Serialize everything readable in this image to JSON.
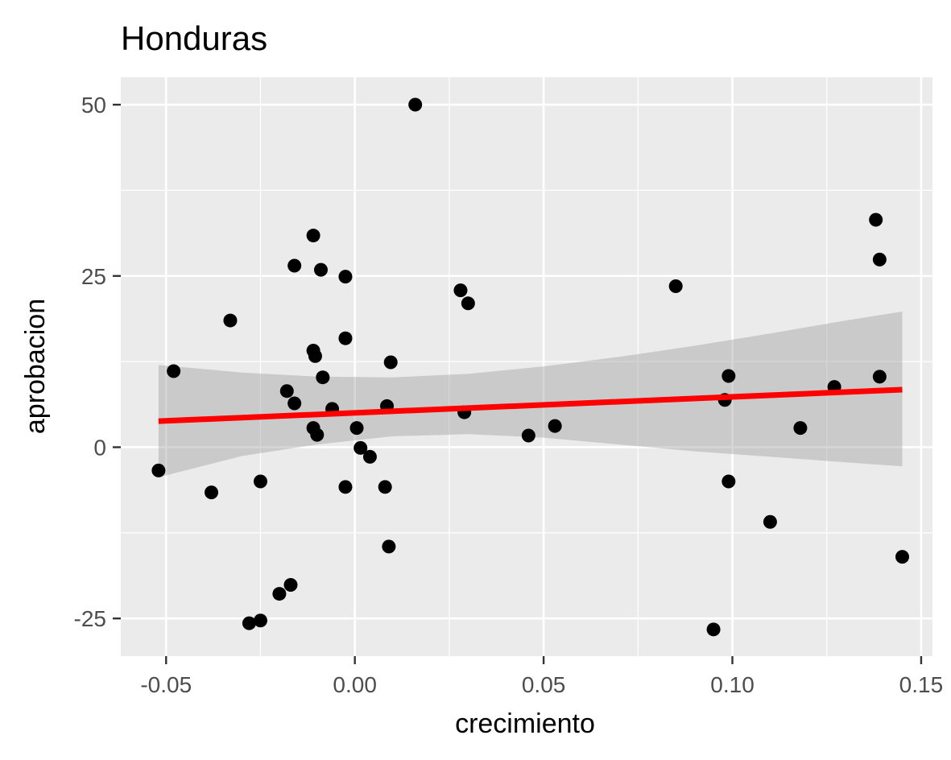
{
  "chart_data": {
    "type": "scatter",
    "title": "Honduras",
    "xlabel": "crecimiento",
    "ylabel": "aprobacion",
    "xlim": [
      -0.062,
      0.153
    ],
    "ylim": [
      -30.5,
      54.0
    ],
    "x_ticks": [
      -0.05,
      0.0,
      0.05,
      0.1,
      0.15
    ],
    "x_tick_labels": [
      "-0.05",
      "0.00",
      "0.05",
      "0.10",
      "0.15"
    ],
    "y_ticks": [
      -25,
      0,
      25,
      50
    ],
    "y_tick_labels": [
      "-25",
      "0",
      "25",
      "50"
    ],
    "grid": true,
    "legend": "none",
    "points": [
      {
        "x": -0.052,
        "y": -3.4
      },
      {
        "x": -0.048,
        "y": 11.1
      },
      {
        "x": -0.038,
        "y": -6.6
      },
      {
        "x": -0.033,
        "y": 18.5
      },
      {
        "x": -0.028,
        "y": -25.7
      },
      {
        "x": -0.025,
        "y": -25.3
      },
      {
        "x": -0.025,
        "y": -5.0
      },
      {
        "x": -0.02,
        "y": -21.4
      },
      {
        "x": -0.018,
        "y": 8.2
      },
      {
        "x": -0.017,
        "y": -20.1
      },
      {
        "x": -0.016,
        "y": 26.5
      },
      {
        "x": -0.016,
        "y": 6.4
      },
      {
        "x": -0.011,
        "y": 30.9
      },
      {
        "x": -0.011,
        "y": 14.1
      },
      {
        "x": -0.0105,
        "y": 13.3
      },
      {
        "x": -0.011,
        "y": 2.8
      },
      {
        "x": -0.01,
        "y": 1.8
      },
      {
        "x": -0.009,
        "y": 25.9
      },
      {
        "x": -0.0085,
        "y": 10.2
      },
      {
        "x": -0.006,
        "y": 5.6
      },
      {
        "x": -0.0025,
        "y": 24.9
      },
      {
        "x": -0.0025,
        "y": 15.9
      },
      {
        "x": -0.0025,
        "y": -5.8
      },
      {
        "x": 0.0005,
        "y": 2.8
      },
      {
        "x": 0.0015,
        "y": -0.1
      },
      {
        "x": 0.004,
        "y": -1.4
      },
      {
        "x": 0.008,
        "y": -5.8
      },
      {
        "x": 0.0085,
        "y": 6.0
      },
      {
        "x": 0.009,
        "y": -14.5
      },
      {
        "x": 0.0095,
        "y": 12.4
      },
      {
        "x": 0.016,
        "y": 50.0
      },
      {
        "x": 0.028,
        "y": 22.9
      },
      {
        "x": 0.029,
        "y": 5.1
      },
      {
        "x": 0.03,
        "y": 21.0
      },
      {
        "x": 0.046,
        "y": 1.7
      },
      {
        "x": 0.053,
        "y": 3.1
      },
      {
        "x": 0.085,
        "y": 23.5
      },
      {
        "x": 0.095,
        "y": -26.6
      },
      {
        "x": 0.098,
        "y": 6.9
      },
      {
        "x": 0.099,
        "y": 10.4
      },
      {
        "x": 0.099,
        "y": -5.0
      },
      {
        "x": 0.11,
        "y": -10.9
      },
      {
        "x": 0.118,
        "y": 2.8
      },
      {
        "x": 0.127,
        "y": 8.8
      },
      {
        "x": 0.138,
        "y": 33.2
      },
      {
        "x": 0.139,
        "y": 27.4
      },
      {
        "x": 0.139,
        "y": 10.3
      },
      {
        "x": 0.145,
        "y": -16.0
      }
    ],
    "fit_line": {
      "x": [
        -0.052,
        0.145
      ],
      "y": [
        3.8,
        8.4
      ],
      "color": "#ff0000"
    },
    "confidence_band": {
      "x": [
        -0.052,
        -0.03,
        -0.01,
        0.01,
        0.03,
        0.05,
        0.07,
        0.09,
        0.11,
        0.13,
        0.145
      ],
      "upper": [
        12.0,
        10.9,
        10.3,
        10.2,
        10.7,
        11.8,
        13.2,
        14.8,
        16.6,
        18.5,
        19.8
      ],
      "lower": [
        -4.4,
        -1.3,
        0.4,
        1.6,
        1.9,
        1.4,
        0.4,
        -0.6,
        -1.4,
        -2.2,
        -2.8
      ]
    },
    "colors": {
      "panel": "#ebebeb",
      "grid": "#ffffff",
      "point": "#000000",
      "band": "#cccccc"
    }
  }
}
